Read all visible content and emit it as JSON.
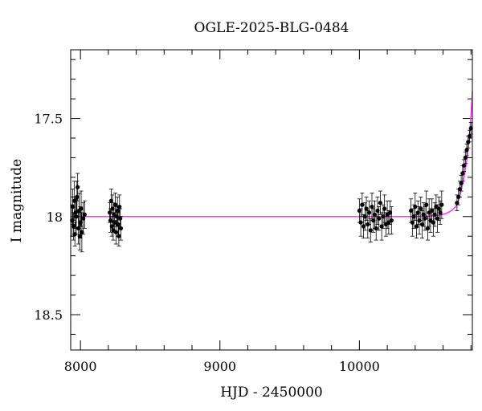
{
  "chart_data": {
    "type": "scatter",
    "title": "OGLE-2025-BLG-0484",
    "xlabel": "HJD - 2450000",
    "ylabel": "I magnitude",
    "xlim": [
      7930,
      10810
    ],
    "ylim": [
      18.68,
      17.15
    ],
    "y_inverted": true,
    "x_ticks_major": [
      8000,
      9000,
      10000
    ],
    "x_tick_labels": [
      "8000",
      "9000",
      "10000"
    ],
    "y_ticks_major": [
      17.5,
      18,
      18.5
    ],
    "y_tick_labels": [
      "17.5",
      "18",
      "18.5"
    ],
    "grid": false,
    "colors": {
      "points": "#000000",
      "model": "#ff33ff"
    },
    "series": [
      {
        "kind": "points_with_errorbars",
        "points": [
          {
            "x": 7940,
            "y": 18.02,
            "err": 0.08
          },
          {
            "x": 7945,
            "y": 17.95,
            "err": 0.09
          },
          {
            "x": 7950,
            "y": 18.05,
            "err": 0.07
          },
          {
            "x": 7955,
            "y": 17.92,
            "err": 0.1
          },
          {
            "x": 7960,
            "y": 18.09,
            "err": 0.06
          },
          {
            "x": 7965,
            "y": 17.98,
            "err": 0.08
          },
          {
            "x": 7970,
            "y": 18.0,
            "err": 0.09
          },
          {
            "x": 7975,
            "y": 17.9,
            "err": 0.08
          },
          {
            "x": 7980,
            "y": 17.85,
            "err": 0.07
          },
          {
            "x": 7985,
            "y": 18.06,
            "err": 0.08
          },
          {
            "x": 7990,
            "y": 17.97,
            "err": 0.09
          },
          {
            "x": 7995,
            "y": 18.1,
            "err": 0.07
          },
          {
            "x": 8000,
            "y": 18.03,
            "err": 0.08
          },
          {
            "x": 8005,
            "y": 17.96,
            "err": 0.09
          },
          {
            "x": 8010,
            "y": 18.08,
            "err": 0.1
          },
          {
            "x": 8020,
            "y": 18.01,
            "err": 0.08
          },
          {
            "x": 8030,
            "y": 17.99,
            "err": 0.07
          },
          {
            "x": 8210,
            "y": 17.98,
            "err": 0.05
          },
          {
            "x": 8215,
            "y": 18.02,
            "err": 0.06
          },
          {
            "x": 8220,
            "y": 17.92,
            "err": 0.06
          },
          {
            "x": 8225,
            "y": 18.05,
            "err": 0.05
          },
          {
            "x": 8230,
            "y": 17.96,
            "err": 0.07
          },
          {
            "x": 8235,
            "y": 18.07,
            "err": 0.05
          },
          {
            "x": 8240,
            "y": 17.99,
            "err": 0.06
          },
          {
            "x": 8245,
            "y": 18.03,
            "err": 0.05
          },
          {
            "x": 8250,
            "y": 17.94,
            "err": 0.06
          },
          {
            "x": 8255,
            "y": 18.08,
            "err": 0.06
          },
          {
            "x": 8260,
            "y": 18.0,
            "err": 0.05
          },
          {
            "x": 8265,
            "y": 17.97,
            "err": 0.07
          },
          {
            "x": 8270,
            "y": 18.04,
            "err": 0.06
          },
          {
            "x": 8275,
            "y": 18.1,
            "err": 0.05
          },
          {
            "x": 8280,
            "y": 17.95,
            "err": 0.06
          },
          {
            "x": 8285,
            "y": 18.01,
            "err": 0.05
          },
          {
            "x": 8290,
            "y": 18.06,
            "err": 0.06
          },
          {
            "x": 10000,
            "y": 17.97,
            "err": 0.06
          },
          {
            "x": 10010,
            "y": 18.03,
            "err": 0.07
          },
          {
            "x": 10020,
            "y": 17.94,
            "err": 0.06
          },
          {
            "x": 10030,
            "y": 18.05,
            "err": 0.06
          },
          {
            "x": 10040,
            "y": 18.0,
            "err": 0.07
          },
          {
            "x": 10050,
            "y": 17.96,
            "err": 0.06
          },
          {
            "x": 10060,
            "y": 18.04,
            "err": 0.07
          },
          {
            "x": 10070,
            "y": 17.98,
            "err": 0.06
          },
          {
            "x": 10080,
            "y": 18.07,
            "err": 0.06
          },
          {
            "x": 10090,
            "y": 17.95,
            "err": 0.07
          },
          {
            "x": 10100,
            "y": 18.02,
            "err": 0.06
          },
          {
            "x": 10110,
            "y": 17.99,
            "err": 0.07
          },
          {
            "x": 10120,
            "y": 18.06,
            "err": 0.06
          },
          {
            "x": 10130,
            "y": 17.97,
            "err": 0.07
          },
          {
            "x": 10140,
            "y": 18.01,
            "err": 0.06
          },
          {
            "x": 10150,
            "y": 17.93,
            "err": 0.06
          },
          {
            "x": 10160,
            "y": 18.05,
            "err": 0.07
          },
          {
            "x": 10170,
            "y": 18.0,
            "err": 0.06
          },
          {
            "x": 10180,
            "y": 17.96,
            "err": 0.07
          },
          {
            "x": 10190,
            "y": 18.04,
            "err": 0.06
          },
          {
            "x": 10200,
            "y": 17.99,
            "err": 0.07
          },
          {
            "x": 10210,
            "y": 18.03,
            "err": 0.06
          },
          {
            "x": 10220,
            "y": 17.98,
            "err": 0.06
          },
          {
            "x": 10230,
            "y": 18.02,
            "err": 0.07
          },
          {
            "x": 10370,
            "y": 17.97,
            "err": 0.06
          },
          {
            "x": 10380,
            "y": 18.03,
            "err": 0.07
          },
          {
            "x": 10390,
            "y": 18.0,
            "err": 0.06
          },
          {
            "x": 10400,
            "y": 17.95,
            "err": 0.07
          },
          {
            "x": 10410,
            "y": 18.05,
            "err": 0.06
          },
          {
            "x": 10420,
            "y": 17.98,
            "err": 0.06
          },
          {
            "x": 10430,
            "y": 18.02,
            "err": 0.07
          },
          {
            "x": 10440,
            "y": 17.96,
            "err": 0.06
          },
          {
            "x": 10450,
            "y": 18.04,
            "err": 0.07
          },
          {
            "x": 10460,
            "y": 17.99,
            "err": 0.06
          },
          {
            "x": 10470,
            "y": 18.01,
            "err": 0.06
          },
          {
            "x": 10480,
            "y": 17.94,
            "err": 0.07
          },
          {
            "x": 10490,
            "y": 18.06,
            "err": 0.06
          },
          {
            "x": 10500,
            "y": 17.98,
            "err": 0.07
          },
          {
            "x": 10510,
            "y": 18.02,
            "err": 0.06
          },
          {
            "x": 10520,
            "y": 17.97,
            "err": 0.06
          },
          {
            "x": 10530,
            "y": 18.03,
            "err": 0.07
          },
          {
            "x": 10540,
            "y": 17.99,
            "err": 0.06
          },
          {
            "x": 10550,
            "y": 17.95,
            "err": 0.06
          },
          {
            "x": 10560,
            "y": 18.01,
            "err": 0.07
          },
          {
            "x": 10570,
            "y": 17.96,
            "err": 0.06
          },
          {
            "x": 10580,
            "y": 17.98,
            "err": 0.06
          },
          {
            "x": 10590,
            "y": 17.94,
            "err": 0.07
          },
          {
            "x": 10700,
            "y": 17.93,
            "err": 0.04
          },
          {
            "x": 10710,
            "y": 17.9,
            "err": 0.04
          },
          {
            "x": 10720,
            "y": 17.86,
            "err": 0.04
          },
          {
            "x": 10730,
            "y": 17.83,
            "err": 0.04
          },
          {
            "x": 10740,
            "y": 17.78,
            "err": 0.04
          },
          {
            "x": 10750,
            "y": 17.74,
            "err": 0.03
          },
          {
            "x": 10760,
            "y": 17.7,
            "err": 0.03
          },
          {
            "x": 10770,
            "y": 17.66,
            "err": 0.03
          },
          {
            "x": 10780,
            "y": 17.62,
            "err": 0.03
          },
          {
            "x": 10790,
            "y": 17.59,
            "err": 0.03
          },
          {
            "x": 10800,
            "y": 17.55,
            "err": 0.03
          }
        ]
      },
      {
        "kind": "model_curve",
        "points": [
          {
            "x": 7930,
            "y": 18.0
          },
          {
            "x": 10400,
            "y": 18.0
          },
          {
            "x": 10550,
            "y": 17.995
          },
          {
            "x": 10620,
            "y": 17.985
          },
          {
            "x": 10660,
            "y": 17.97
          },
          {
            "x": 10690,
            "y": 17.95
          },
          {
            "x": 10710,
            "y": 17.92
          },
          {
            "x": 10730,
            "y": 17.87
          },
          {
            "x": 10750,
            "y": 17.8
          },
          {
            "x": 10770,
            "y": 17.71
          },
          {
            "x": 10785,
            "y": 17.62
          },
          {
            "x": 10797,
            "y": 17.52
          },
          {
            "x": 10805,
            "y": 17.43
          },
          {
            "x": 10810,
            "y": 17.36
          }
        ]
      }
    ]
  }
}
